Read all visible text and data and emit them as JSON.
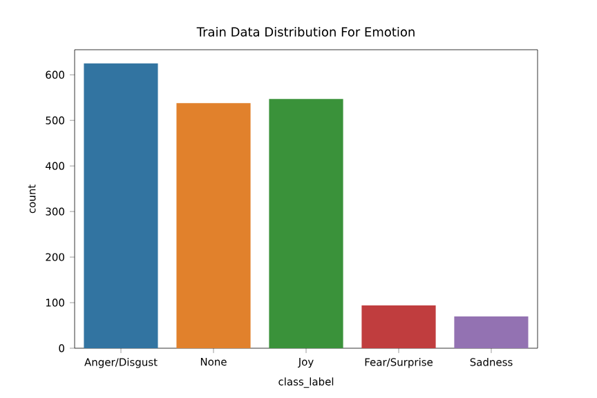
{
  "chart_data": {
    "type": "bar",
    "title": "Train Data Distribution For Emotion",
    "xlabel": "class_label",
    "ylabel": "count",
    "categories": [
      "Anger/Disgust",
      "None",
      "Joy",
      "Fear/Surprise",
      "Sadness"
    ],
    "values": [
      625,
      538,
      547,
      94,
      70
    ],
    "colors": [
      "#3274a1",
      "#e1812c",
      "#3a923a",
      "#c03d3e",
      "#9372b2"
    ],
    "ylim": [
      0,
      655
    ],
    "yticks": [
      0,
      100,
      200,
      300,
      400,
      500,
      600
    ],
    "grid": false
  }
}
